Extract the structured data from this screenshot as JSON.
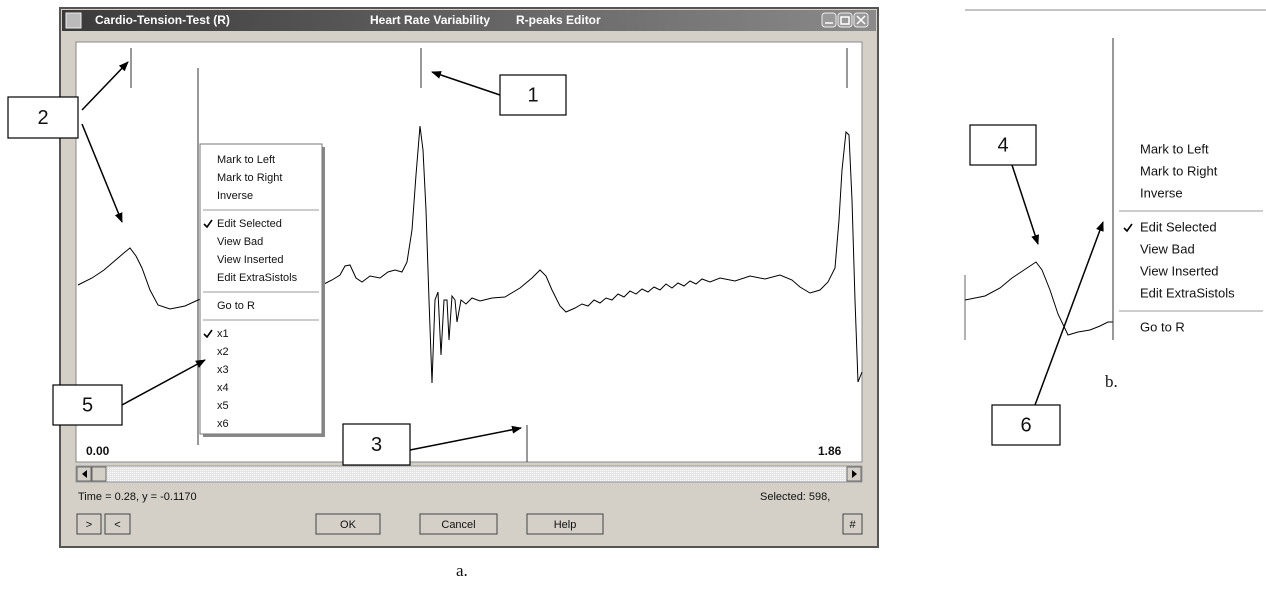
{
  "window": {
    "title": "Cardio-Tension-Test (R)",
    "subtitle": "Heart Rate Variability",
    "editor": "R-peaks  Editor"
  },
  "plot": {
    "start": "0.00",
    "end": "1.86"
  },
  "status": {
    "time": "Time = 0.28,  y = -0.1170",
    "selected": "Selected: 598,"
  },
  "buttons": [
    ">",
    "<",
    "OK",
    "Cancel",
    "Help",
    "#"
  ],
  "menu": {
    "groups": [
      [
        {
          "label": "Mark to Left",
          "checked": false
        },
        {
          "label": "Mark to Right",
          "checked": false
        },
        {
          "label": "Inverse",
          "checked": false
        }
      ],
      [
        {
          "label": "Edit Selected",
          "checked": true
        },
        {
          "label": "View Bad",
          "checked": false
        },
        {
          "label": "View Inserted",
          "checked": false
        },
        {
          "label": "Edit ExtraSistols",
          "checked": false
        }
      ],
      [
        {
          "label": "Go to R",
          "checked": false
        }
      ],
      [
        {
          "label": "x1",
          "checked": true
        },
        {
          "label": "x2",
          "checked": false
        },
        {
          "label": "x3",
          "checked": false
        },
        {
          "label": "x4",
          "checked": false
        },
        {
          "label": "x5",
          "checked": false
        },
        {
          "label": "x6",
          "checked": false
        }
      ]
    ]
  },
  "menu_b": {
    "groups": [
      [
        {
          "label": "Mark to Left",
          "checked": false
        },
        {
          "label": "Mark to Right",
          "checked": false
        },
        {
          "label": "Inverse",
          "checked": false
        }
      ],
      [
        {
          "label": "Edit Selected",
          "checked": true
        },
        {
          "label": "View Bad",
          "checked": false
        },
        {
          "label": "View Inserted",
          "checked": false
        },
        {
          "label": "Edit ExtraSistols",
          "checked": false
        }
      ],
      [
        {
          "label": "Go to R",
          "checked": false
        }
      ]
    ]
  },
  "callouts": [
    "1",
    "2",
    "3",
    "4",
    "5",
    "6"
  ],
  "captions": {
    "a": "a.",
    "b": "b."
  }
}
